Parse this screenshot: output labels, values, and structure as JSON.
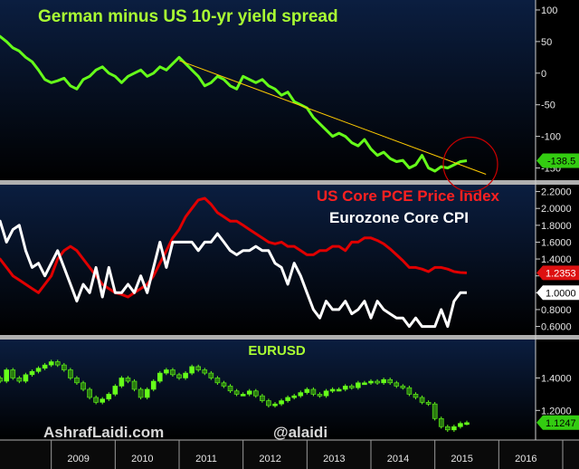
{
  "colors": {
    "spread": "#66ff1a",
    "pce": "#e00000",
    "cpi": "#ffffff",
    "eurusd_up": "#66ff1a",
    "eurusd_down": "#2a7a10",
    "trendline": "#ffcc00",
    "circle": "#cc0000",
    "title_green": "#aaff33",
    "title_red": "#ff2020",
    "panel_bg_top": "#0a1a38",
    "panel_bg_bottom": "#000000"
  },
  "watermarks": {
    "site": "AshrafLaidi.com",
    "handle": "@alaidi"
  },
  "chart_data": [
    {
      "type": "line",
      "title": "German minus US 10-yr yield spread",
      "yticks": [
        "100",
        "50",
        "0",
        "-50",
        "-100",
        "-150"
      ],
      "ytick_values": [
        100,
        50,
        0,
        -50,
        -100,
        -150
      ],
      "ylim": [
        -165,
        110
      ],
      "last_value_label": "-138.5",
      "last_value": -138.5,
      "series": [
        {
          "x": [
            2008.0,
            2008.1,
            2008.2,
            2008.3,
            2008.4,
            2008.5,
            2008.6,
            2008.7,
            2008.8,
            2008.9,
            2009.0,
            2009.1,
            2009.2,
            2009.3,
            2009.4,
            2009.5,
            2009.6,
            2009.7,
            2009.8,
            2009.9,
            2010.0,
            2010.1,
            2010.2,
            2010.3,
            2010.4,
            2010.5,
            2010.6,
            2010.7,
            2010.8,
            2010.9,
            2011.0,
            2011.1,
            2011.2,
            2011.3,
            2011.4,
            2011.5,
            2011.6,
            2011.7,
            2011.8,
            2011.9,
            2012.0,
            2012.1,
            2012.2,
            2012.3,
            2012.4,
            2012.5,
            2012.6,
            2012.7,
            2012.8,
            2012.9,
            2013.0,
            2013.1,
            2013.2,
            2013.3,
            2013.4,
            2013.5,
            2013.6,
            2013.7,
            2013.8,
            2013.9,
            2014.0,
            2014.1,
            2014.2,
            2014.3,
            2014.4,
            2014.5,
            2014.6,
            2014.7,
            2014.8,
            2014.9,
            2015.0,
            2015.1,
            2015.2,
            2015.3,
            2015.4,
            2015.5
          ],
          "values": [
            72,
            65,
            58,
            50,
            40,
            35,
            25,
            18,
            5,
            -10,
            -15,
            -12,
            -8,
            -20,
            -25,
            -10,
            -5,
            5,
            10,
            0,
            -5,
            -15,
            -5,
            0,
            5,
            -5,
            0,
            10,
            5,
            15,
            25,
            15,
            5,
            -5,
            -20,
            -15,
            -5,
            -10,
            -20,
            -25,
            -5,
            -10,
            -15,
            -10,
            -20,
            -25,
            -35,
            -30,
            -45,
            -50,
            -55,
            -70,
            -80,
            -90,
            -100,
            -95,
            -100,
            -110,
            -115,
            -105,
            -120,
            -130,
            -125,
            -135,
            -140,
            -138,
            -150,
            -145,
            -130,
            -150,
            -155,
            -148,
            -150,
            -145,
            -140,
            -138.5
          ]
        }
      ],
      "trendline": {
        "x": [
          2011.0,
          2015.8
        ],
        "values": [
          20,
          -160
        ]
      }
    },
    {
      "type": "line",
      "yticks": [
        "2.2000",
        "2.0000",
        "1.8000",
        "1.6000",
        "1.4000",
        "1.2000",
        "1.0000",
        "0.8000",
        "0.6000"
      ],
      "ytick_values": [
        2.2,
        2.0,
        1.8,
        1.6,
        1.4,
        1.2,
        1.0,
        0.8,
        0.6
      ],
      "ylim": [
        0.52,
        2.26
      ],
      "series": [
        {
          "name": "US Core PCE Price Index",
          "last_value_label": "1.2353",
          "x": [
            2008.0,
            2008.1,
            2008.2,
            2008.3,
            2008.4,
            2008.5,
            2008.6,
            2008.7,
            2008.8,
            2008.9,
            2009.0,
            2009.1,
            2009.2,
            2009.3,
            2009.4,
            2009.5,
            2009.6,
            2009.7,
            2009.8,
            2009.9,
            2010.0,
            2010.1,
            2010.2,
            2010.3,
            2010.4,
            2010.5,
            2010.6,
            2010.7,
            2010.8,
            2010.9,
            2011.0,
            2011.1,
            2011.2,
            2011.3,
            2011.4,
            2011.5,
            2011.6,
            2011.7,
            2011.8,
            2011.9,
            2012.0,
            2012.1,
            2012.2,
            2012.3,
            2012.4,
            2012.5,
            2012.6,
            2012.7,
            2012.8,
            2012.9,
            2013.0,
            2013.1,
            2013.2,
            2013.3,
            2013.4,
            2013.5,
            2013.6,
            2013.7,
            2013.8,
            2013.9,
            2014.0,
            2014.1,
            2014.2,
            2014.3,
            2014.4,
            2014.5,
            2014.6,
            2014.7,
            2014.8,
            2014.9,
            2015.0,
            2015.1,
            2015.2,
            2015.3,
            2015.4,
            2015.5
          ],
          "values": [
            1.38,
            1.42,
            1.4,
            1.3,
            1.2,
            1.15,
            1.1,
            1.05,
            1.0,
            1.1,
            1.2,
            1.4,
            1.5,
            1.55,
            1.5,
            1.4,
            1.3,
            1.2,
            1.1,
            1.05,
            1.0,
            0.98,
            0.95,
            1.0,
            1.05,
            1.1,
            1.2,
            1.35,
            1.5,
            1.65,
            1.75,
            1.9,
            2.0,
            2.1,
            2.12,
            2.05,
            1.95,
            1.9,
            1.85,
            1.85,
            1.8,
            1.75,
            1.7,
            1.65,
            1.6,
            1.58,
            1.6,
            1.55,
            1.55,
            1.5,
            1.45,
            1.45,
            1.5,
            1.5,
            1.55,
            1.55,
            1.5,
            1.6,
            1.6,
            1.65,
            1.65,
            1.62,
            1.58,
            1.52,
            1.45,
            1.38,
            1.3,
            1.3,
            1.28,
            1.25,
            1.3,
            1.3,
            1.28,
            1.25,
            1.24,
            1.2353
          ]
        },
        {
          "name": "Eurozone Core CPI",
          "last_value_label": "1.0000",
          "x": [
            2008.0,
            2008.1,
            2008.2,
            2008.3,
            2008.4,
            2008.5,
            2008.6,
            2008.7,
            2008.8,
            2008.9,
            2009.0,
            2009.1,
            2009.2,
            2009.3,
            2009.4,
            2009.5,
            2009.6,
            2009.7,
            2009.8,
            2009.9,
            2010.0,
            2010.1,
            2010.2,
            2010.3,
            2010.4,
            2010.5,
            2010.6,
            2010.7,
            2010.8,
            2010.9,
            2011.0,
            2011.1,
            2011.2,
            2011.3,
            2011.4,
            2011.5,
            2011.6,
            2011.7,
            2011.8,
            2011.9,
            2012.0,
            2012.1,
            2012.2,
            2012.3,
            2012.4,
            2012.5,
            2012.6,
            2012.7,
            2012.8,
            2012.9,
            2013.0,
            2013.1,
            2013.2,
            2013.3,
            2013.4,
            2013.5,
            2013.6,
            2013.7,
            2013.8,
            2013.9,
            2014.0,
            2014.1,
            2014.2,
            2014.3,
            2014.4,
            2014.5,
            2014.6,
            2014.7,
            2014.8,
            2014.9,
            2015.0,
            2015.1,
            2015.2,
            2015.3,
            2015.4,
            2015.5
          ],
          "values": [
            1.7,
            1.75,
            1.85,
            1.6,
            1.75,
            1.8,
            1.5,
            1.3,
            1.35,
            1.2,
            1.35,
            1.5,
            1.3,
            1.1,
            0.9,
            1.1,
            1.0,
            1.3,
            0.95,
            1.3,
            1.0,
            1.0,
            1.1,
            1.0,
            1.2,
            1.0,
            1.3,
            1.6,
            1.3,
            1.6,
            1.6,
            1.6,
            1.6,
            1.5,
            1.6,
            1.6,
            1.7,
            1.6,
            1.5,
            1.45,
            1.5,
            1.5,
            1.55,
            1.5,
            1.5,
            1.35,
            1.3,
            1.1,
            1.35,
            1.2,
            1.0,
            0.8,
            0.7,
            0.9,
            0.8,
            0.8,
            0.9,
            0.75,
            0.8,
            0.9,
            0.7,
            0.9,
            0.8,
            0.75,
            0.7,
            0.7,
            0.6,
            0.7,
            0.6,
            0.6,
            0.6,
            0.8,
            0.6,
            0.9,
            1.0,
            1.0
          ]
        }
      ]
    },
    {
      "type": "bar",
      "title": "EURUSD",
      "yticks": [
        "1.4000",
        "1.2000"
      ],
      "ytick_values": [
        1.4,
        1.2
      ],
      "ylim": [
        1.04,
        1.62
      ],
      "last_value_label": "1.1247",
      "series": [
        {
          "name": "EURUSD",
          "x": [
            2008.0,
            2008.1,
            2008.2,
            2008.3,
            2008.4,
            2008.5,
            2008.6,
            2008.7,
            2008.8,
            2008.9,
            2009.0,
            2009.1,
            2009.2,
            2009.3,
            2009.4,
            2009.5,
            2009.6,
            2009.7,
            2009.8,
            2009.9,
            2010.0,
            2010.1,
            2010.2,
            2010.3,
            2010.4,
            2010.5,
            2010.6,
            2010.7,
            2010.8,
            2010.9,
            2011.0,
            2011.1,
            2011.2,
            2011.3,
            2011.4,
            2011.5,
            2011.6,
            2011.7,
            2011.8,
            2011.9,
            2012.0,
            2012.1,
            2012.2,
            2012.3,
            2012.4,
            2012.5,
            2012.6,
            2012.7,
            2012.8,
            2012.9,
            2013.0,
            2013.1,
            2013.2,
            2013.3,
            2013.4,
            2013.5,
            2013.6,
            2013.7,
            2013.8,
            2013.9,
            2014.0,
            2014.1,
            2014.2,
            2014.3,
            2014.4,
            2014.5,
            2014.6,
            2014.7,
            2014.8,
            2014.9,
            2015.0,
            2015.1,
            2015.2,
            2015.3,
            2015.4,
            2015.5
          ],
          "values": [
            1.45,
            1.4,
            1.38,
            1.45,
            1.4,
            1.38,
            1.42,
            1.44,
            1.46,
            1.48,
            1.5,
            1.48,
            1.45,
            1.4,
            1.37,
            1.33,
            1.28,
            1.25,
            1.27,
            1.3,
            1.35,
            1.4,
            1.38,
            1.33,
            1.28,
            1.33,
            1.38,
            1.43,
            1.45,
            1.42,
            1.4,
            1.43,
            1.47,
            1.45,
            1.43,
            1.4,
            1.37,
            1.35,
            1.32,
            1.3,
            1.3,
            1.32,
            1.29,
            1.26,
            1.23,
            1.24,
            1.26,
            1.28,
            1.29,
            1.31,
            1.33,
            1.3,
            1.29,
            1.32,
            1.33,
            1.33,
            1.35,
            1.34,
            1.37,
            1.37,
            1.38,
            1.37,
            1.39,
            1.37,
            1.35,
            1.34,
            1.3,
            1.28,
            1.25,
            1.24,
            1.15,
            1.1,
            1.08,
            1.1,
            1.12,
            1.1247
          ]
        }
      ]
    }
  ],
  "x_axis": {
    "ticks": [
      "2009",
      "2010",
      "2011",
      "2012",
      "2013",
      "2014",
      "2015",
      "2016",
      "20"
    ],
    "tick_values": [
      2009.0,
      2010.0,
      2011.0,
      2012.0,
      2013.0,
      2014.0,
      2015.0,
      2016.0,
      2017.0
    ]
  }
}
